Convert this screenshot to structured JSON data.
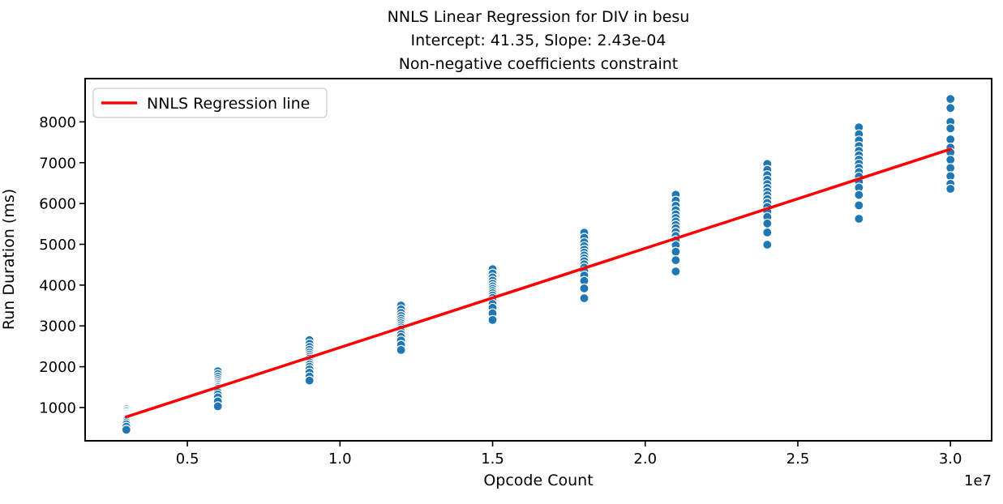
{
  "chart_data": {
    "type": "scatter",
    "title_lines": [
      "NNLS Linear Regression for DIV in besu",
      "Intercept: 41.35, Slope: 2.43e-04",
      "Non-negative coefficients constraint"
    ],
    "xlabel": "Opcode Count",
    "ylabel": "Run Duration (ms)",
    "x_offset_label": "1e7",
    "x_ticks": [
      5000000,
      10000000,
      15000000,
      20000000,
      25000000,
      30000000
    ],
    "x_tick_labels": [
      "0.5",
      "1.0",
      "1.5",
      "2.0",
      "2.5",
      "3.0"
    ],
    "y_ticks": [
      1000,
      2000,
      3000,
      4000,
      5000,
      6000,
      7000,
      8000
    ],
    "y_tick_labels": [
      "1000",
      "2000",
      "3000",
      "4000",
      "5000",
      "6000",
      "7000",
      "8000"
    ],
    "xlim": [
      1650000,
      31350000
    ],
    "ylim": [
      185,
      9060
    ],
    "grid": false,
    "legend": {
      "label": "NNLS Regression line",
      "position": "upper left"
    },
    "scatter_color": "#1f77b4",
    "marker_edge_color": "#ffffff",
    "regression": {
      "intercept": 41.35,
      "slope": 0.000243,
      "x_start": 3000000,
      "x_end": 30000000,
      "color": "#ff0000"
    },
    "clusters": [
      {
        "x": 3000000,
        "y": [
          960,
          925,
          895,
          865,
          840,
          815,
          795,
          775,
          755,
          735,
          710,
          675,
          635,
          590,
          530,
          455
        ]
      },
      {
        "x": 6000000,
        "y": [
          1890,
          1820,
          1755,
          1700,
          1650,
          1605,
          1565,
          1530,
          1495,
          1460,
          1420,
          1375,
          1320,
          1250,
          1150,
          1030
        ]
      },
      {
        "x": 9000000,
        "y": [
          2650,
          2565,
          2485,
          2415,
          2350,
          2295,
          2245,
          2200,
          2155,
          2105,
          2055,
          2000,
          1935,
          1855,
          1760,
          1660
        ]
      },
      {
        "x": 12000000,
        "y": [
          3500,
          3405,
          3320,
          3245,
          3180,
          3120,
          3065,
          3015,
          2965,
          2915,
          2860,
          2800,
          2730,
          2645,
          2535,
          2410
        ]
      },
      {
        "x": 15000000,
        "y": [
          4390,
          4285,
          4190,
          4110,
          4035,
          3970,
          3910,
          3855,
          3800,
          3745,
          3685,
          3620,
          3540,
          3445,
          3310,
          3145
        ]
      },
      {
        "x": 18000000,
        "y": [
          5285,
          5160,
          5050,
          4955,
          4870,
          4795,
          4725,
          4655,
          4585,
          4510,
          4430,
          4340,
          4235,
          4105,
          3920,
          3680
        ]
      },
      {
        "x": 21000000,
        "y": [
          6215,
          6070,
          5945,
          5835,
          5735,
          5645,
          5560,
          5475,
          5390,
          5300,
          5205,
          5100,
          4975,
          4820,
          4610,
          4335
        ]
      },
      {
        "x": 24000000,
        "y": [
          6970,
          6825,
          6695,
          6580,
          6475,
          6380,
          6290,
          6200,
          6110,
          6015,
          5915,
          5800,
          5670,
          5510,
          5290,
          4990
        ]
      },
      {
        "x": 27000000,
        "y": [
          7865,
          7695,
          7545,
          7410,
          7290,
          7180,
          7075,
          6975,
          6875,
          6770,
          6660,
          6535,
          6390,
          6210,
          5955,
          5625
        ]
      },
      {
        "x": 30000000,
        "y": [
          8560,
          8340,
          8000,
          7840,
          7570,
          7370,
          7250,
          7070,
          6870,
          6670,
          6480,
          6360
        ]
      }
    ]
  }
}
